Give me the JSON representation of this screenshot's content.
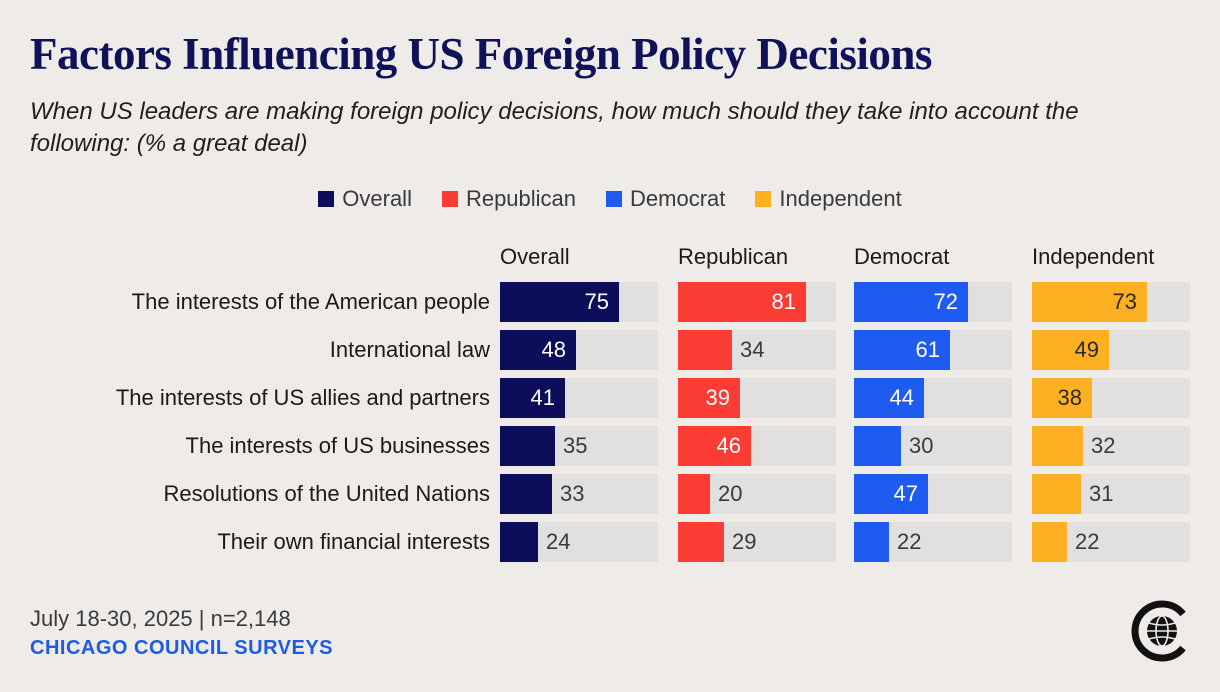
{
  "chart_data": {
    "type": "bar",
    "title": "Factors Influencing US Foreign Policy Decisions",
    "subtitle": "When US leaders are making foreign policy decisions, how much should they take into account the following: (% a great deal)",
    "categories": [
      "The interests of the American people",
      "International law",
      "The interests of US allies and partners",
      "The interests of US businesses",
      "Resolutions of the United Nations",
      "Their own financial interests"
    ],
    "series": [
      {
        "name": "Overall",
        "color": "#0c0e5a",
        "values": [
          75,
          48,
          41,
          35,
          33,
          24
        ]
      },
      {
        "name": "Republican",
        "color": "#fb3c35",
        "values": [
          81,
          34,
          39,
          46,
          20,
          29
        ]
      },
      {
        "name": "Democrat",
        "color": "#1e5bf0",
        "values": [
          72,
          61,
          44,
          30,
          47,
          22
        ]
      },
      {
        "name": "Independent",
        "color": "#fdb022",
        "values": [
          73,
          49,
          38,
          32,
          31,
          22
        ]
      }
    ],
    "xlim": [
      0,
      100
    ],
    "legend": "top-center"
  },
  "footer": {
    "date_sample": "July 18-30, 2025 | n=2,148",
    "brand": "CHICAGO COUNCIL SURVEYS"
  },
  "logo": {
    "icon": "chicago-council-globe-icon"
  },
  "colors": {
    "background": "#efebe9",
    "track": "#e2e0df",
    "title": "#0f1259",
    "brand": "#1d5be6"
  }
}
